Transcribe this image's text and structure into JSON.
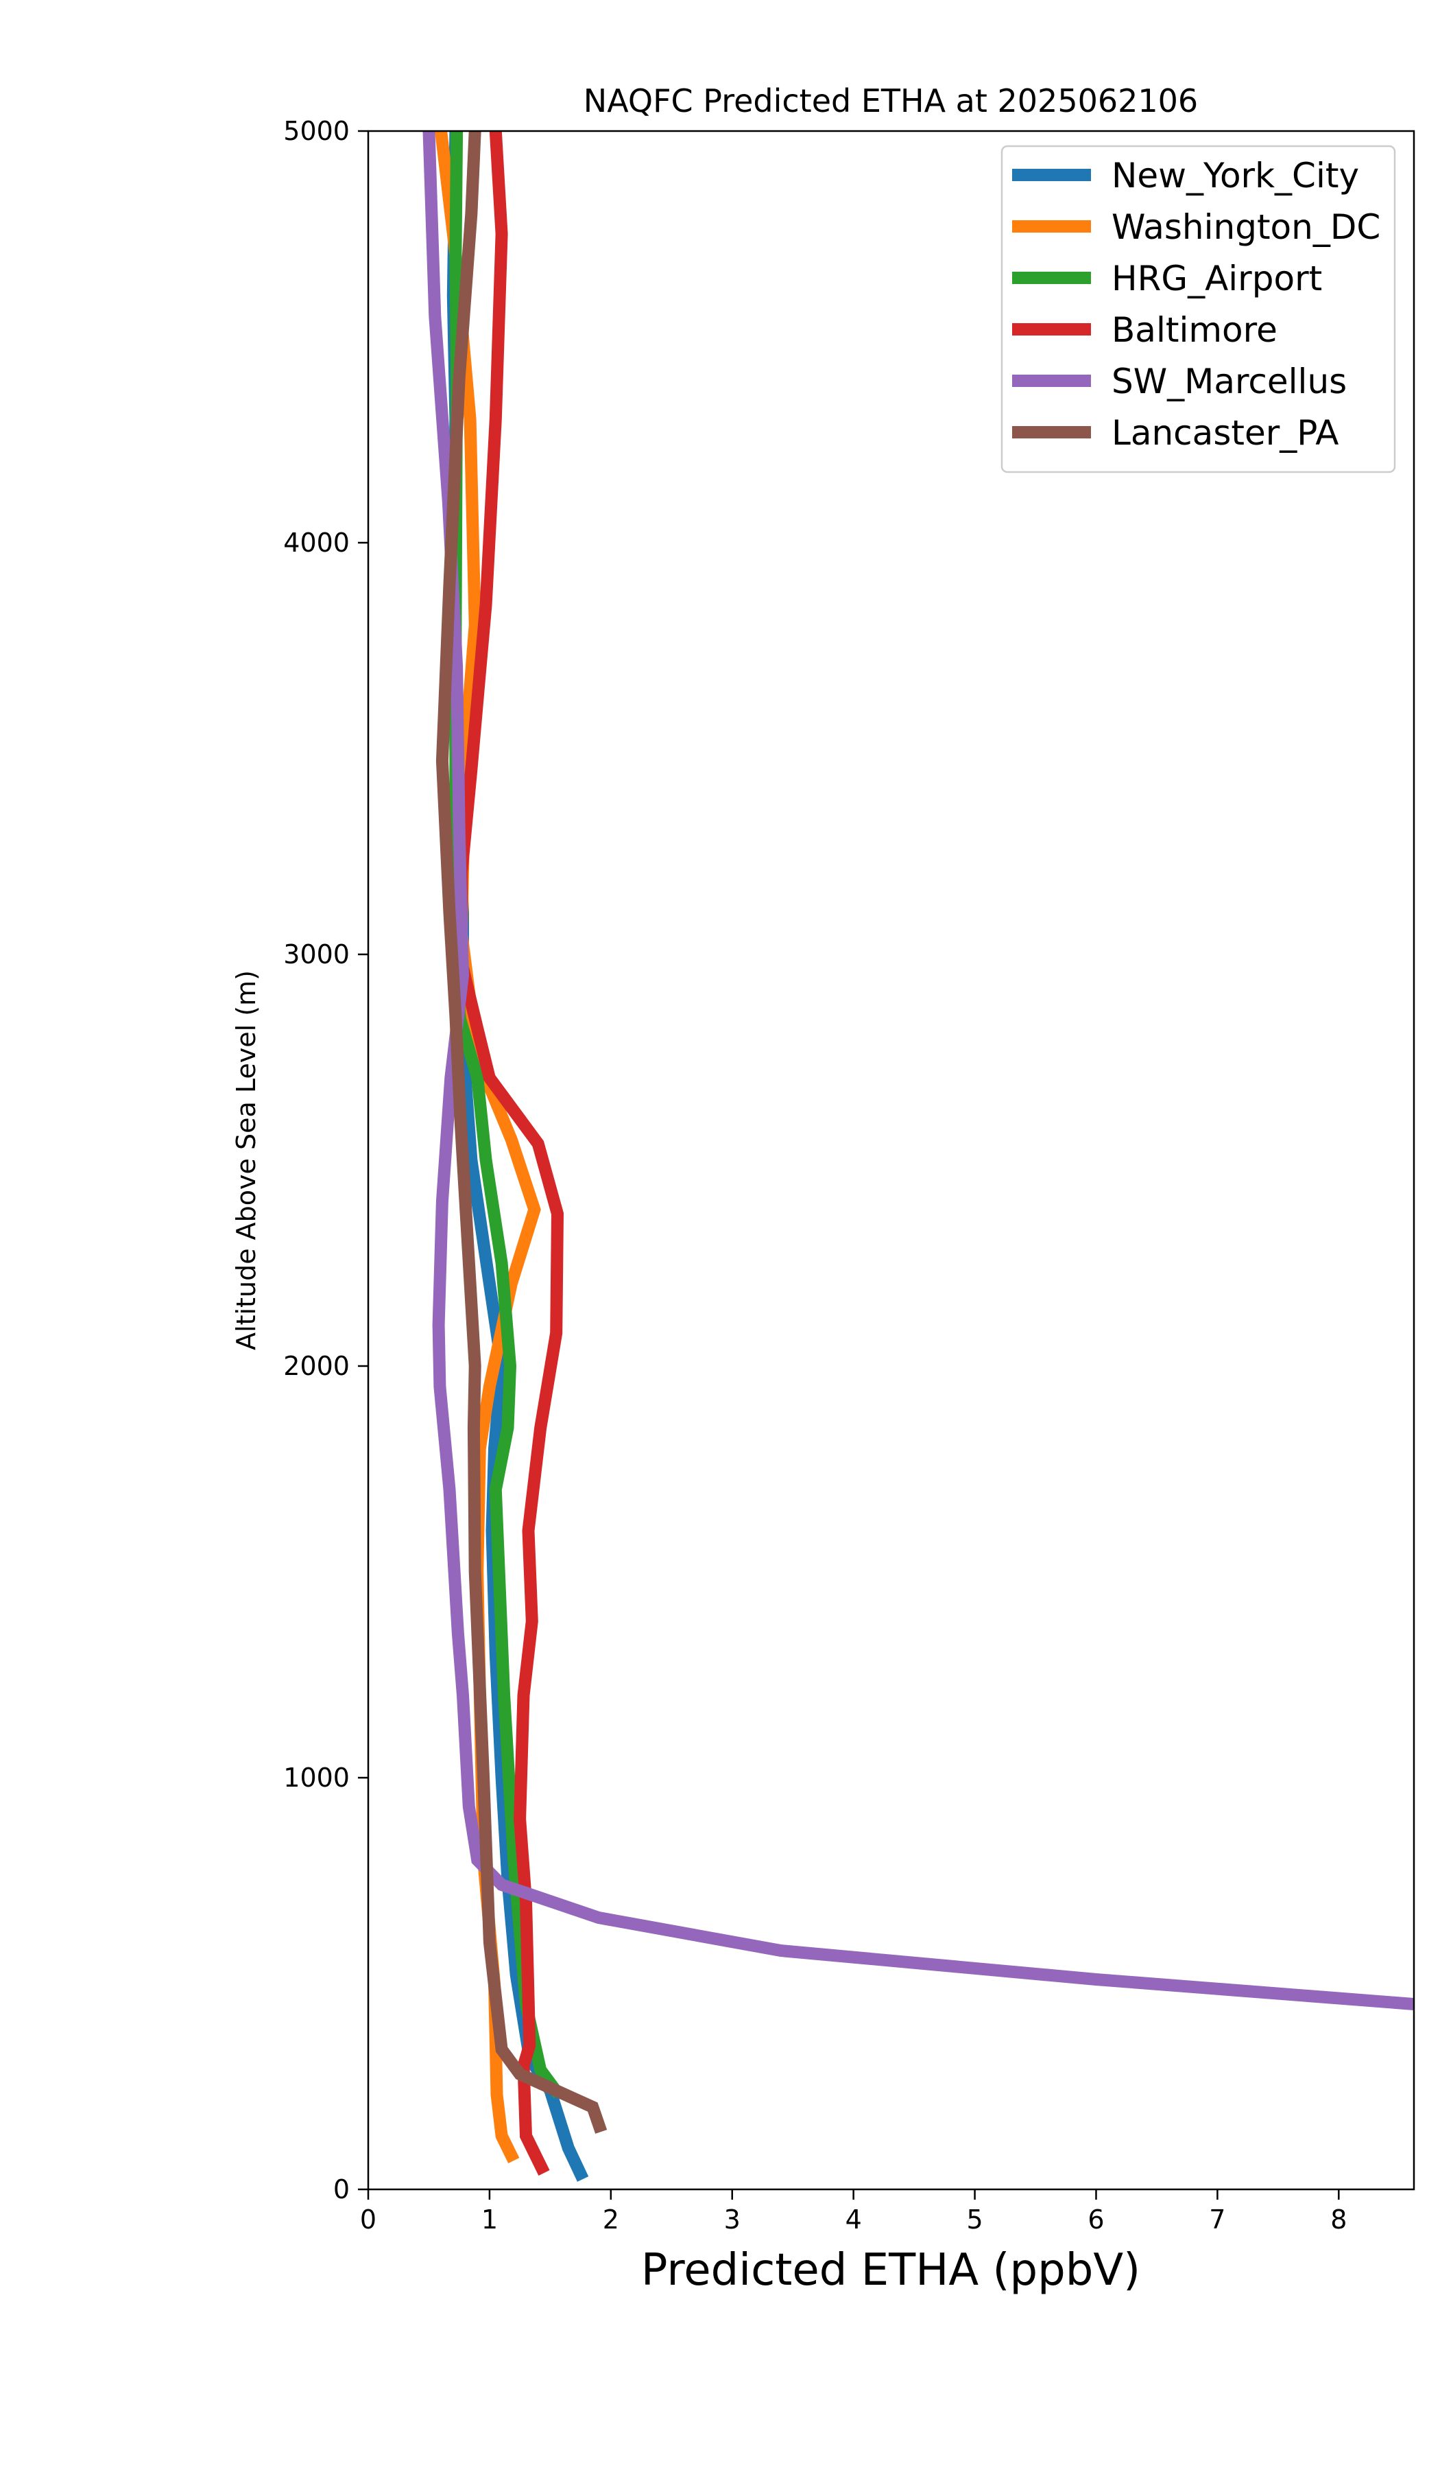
{
  "chart_data": {
    "type": "line",
    "title": "NAQFC Predicted ETHA at 2025062106",
    "xlabel": "Predicted ETHA (ppbV)",
    "ylabel": "Altitude Above Sea Level (m)",
    "xlim": [
      0,
      8.62
    ],
    "ylim": [
      0,
      5000
    ],
    "xticks": [
      0,
      1,
      2,
      3,
      4,
      5,
      6,
      7,
      8
    ],
    "yticks": [
      0,
      1000,
      2000,
      3000,
      4000,
      5000
    ],
    "grid": false,
    "legend_position": "upper-right",
    "series": [
      {
        "name": "New_York_City",
        "color": "#1f77b4",
        "points": [
          [
            1.77,
            25
          ],
          [
            1.65,
            100
          ],
          [
            1.5,
            240
          ],
          [
            1.33,
            320
          ],
          [
            1.22,
            520
          ],
          [
            1.15,
            750
          ],
          [
            1.1,
            1000
          ],
          [
            1.05,
            1300
          ],
          [
            1.02,
            1600
          ],
          [
            1.04,
            1800
          ],
          [
            1.1,
            2000
          ],
          [
            1.0,
            2200
          ],
          [
            0.85,
            2500
          ],
          [
            0.8,
            2700
          ],
          [
            0.78,
            2900
          ],
          [
            0.78,
            3100
          ],
          [
            0.75,
            3300
          ],
          [
            0.72,
            3500
          ],
          [
            0.7,
            3900
          ],
          [
            0.72,
            4300
          ],
          [
            0.7,
            4600
          ],
          [
            0.72,
            5000
          ]
        ]
      },
      {
        "name": "Washington_DC",
        "color": "#ff7f0e",
        "points": [
          [
            1.2,
            70
          ],
          [
            1.1,
            130
          ],
          [
            1.06,
            230
          ],
          [
            1.04,
            500
          ],
          [
            0.95,
            800
          ],
          [
            0.92,
            1200
          ],
          [
            0.9,
            1500
          ],
          [
            0.92,
            1800
          ],
          [
            1.0,
            1950
          ],
          [
            1.18,
            2200
          ],
          [
            1.37,
            2380
          ],
          [
            1.18,
            2550
          ],
          [
            0.9,
            2750
          ],
          [
            0.77,
            3050
          ],
          [
            0.8,
            3500
          ],
          [
            0.88,
            3800
          ],
          [
            0.84,
            4300
          ],
          [
            0.72,
            4700
          ],
          [
            0.6,
            5000
          ]
        ]
      },
      {
        "name": "HRG_Airport",
        "color": "#2ca02c",
        "points": [
          [
            1.57,
            230
          ],
          [
            1.42,
            290
          ],
          [
            1.3,
            450
          ],
          [
            1.2,
            800
          ],
          [
            1.12,
            1200
          ],
          [
            1.05,
            1700
          ],
          [
            1.15,
            1850
          ],
          [
            1.17,
            2000
          ],
          [
            1.1,
            2250
          ],
          [
            0.97,
            2500
          ],
          [
            0.9,
            2700
          ],
          [
            0.75,
            2850
          ],
          [
            0.76,
            3100
          ],
          [
            0.72,
            3400
          ],
          [
            0.72,
            3800
          ],
          [
            0.73,
            4400
          ],
          [
            0.72,
            4700
          ],
          [
            0.73,
            5000
          ]
        ]
      },
      {
        "name": "Baltimore",
        "color": "#d62728",
        "points": [
          [
            1.45,
            40
          ],
          [
            1.3,
            130
          ],
          [
            1.28,
            300
          ],
          [
            1.33,
            350
          ],
          [
            1.3,
            700
          ],
          [
            1.25,
            900
          ],
          [
            1.28,
            1200
          ],
          [
            1.35,
            1380
          ],
          [
            1.32,
            1600
          ],
          [
            1.42,
            1850
          ],
          [
            1.55,
            2080
          ],
          [
            1.56,
            2370
          ],
          [
            1.4,
            2540
          ],
          [
            1.0,
            2700
          ],
          [
            0.9,
            2820
          ],
          [
            0.77,
            2980
          ],
          [
            0.77,
            3200
          ],
          [
            0.85,
            3450
          ],
          [
            0.97,
            3850
          ],
          [
            1.05,
            4300
          ],
          [
            1.1,
            4750
          ],
          [
            1.05,
            5000
          ]
        ]
      },
      {
        "name": "SW_Marcellus",
        "color": "#9467bd",
        "points": [
          [
            8.62,
            450
          ],
          [
            6.0,
            510
          ],
          [
            3.4,
            580
          ],
          [
            1.9,
            660
          ],
          [
            1.1,
            740
          ],
          [
            0.9,
            800
          ],
          [
            0.83,
            930
          ],
          [
            0.78,
            1200
          ],
          [
            0.74,
            1350
          ],
          [
            0.67,
            1700
          ],
          [
            0.59,
            1950
          ],
          [
            0.58,
            2100
          ],
          [
            0.61,
            2400
          ],
          [
            0.68,
            2700
          ],
          [
            0.78,
            2950
          ],
          [
            0.75,
            3300
          ],
          [
            0.73,
            3700
          ],
          [
            0.66,
            4100
          ],
          [
            0.55,
            4550
          ],
          [
            0.5,
            5000
          ]
        ]
      },
      {
        "name": "Lancaster_PA",
        "color": "#8c564b",
        "points": [
          [
            1.92,
            140
          ],
          [
            1.85,
            200
          ],
          [
            1.55,
            240
          ],
          [
            1.25,
            280
          ],
          [
            1.1,
            340
          ],
          [
            1.0,
            600
          ],
          [
            0.95,
            1000
          ],
          [
            0.88,
            1500
          ],
          [
            0.87,
            1850
          ],
          [
            0.88,
            2000
          ],
          [
            0.82,
            2300
          ],
          [
            0.76,
            2600
          ],
          [
            0.72,
            2850
          ],
          [
            0.67,
            3100
          ],
          [
            0.61,
            3470
          ],
          [
            0.67,
            3900
          ],
          [
            0.75,
            4400
          ],
          [
            0.85,
            4800
          ],
          [
            0.88,
            5000
          ]
        ]
      }
    ]
  }
}
